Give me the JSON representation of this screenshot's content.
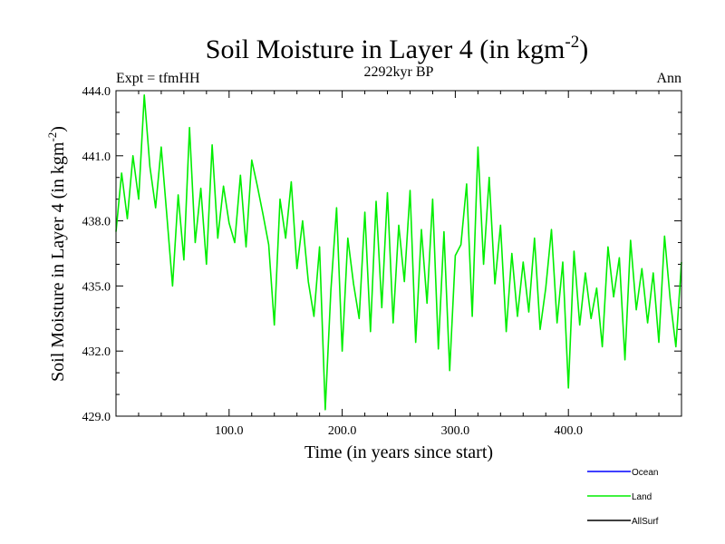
{
  "chart_data": {
    "type": "line",
    "title": "Soil Moisture in Layer 4 (in kgm",
    "title_sup": "-2",
    "title_close": ")",
    "subtitle": "2292kyr BP",
    "left_label": "Expt = tfmHH",
    "right_label": "Ann",
    "xlabel": "Time (in years since start)",
    "ylabel": "Soil Moisture in Layer 4 (in kgm",
    "ylabel_sup": "-2",
    "ylabel_close": ")",
    "xlim": [
      0,
      500
    ],
    "ylim": [
      429,
      444
    ],
    "x_ticks": [
      100,
      200,
      300,
      400
    ],
    "x_tick_labels": [
      "100.0",
      "200.0",
      "300.0",
      "400.0"
    ],
    "y_ticks": [
      429,
      432,
      435,
      438,
      441,
      444
    ],
    "y_tick_labels": [
      "429.0",
      "432.0",
      "435.0",
      "438.0",
      "441.0",
      "444.0"
    ],
    "series": [
      {
        "name": "Land",
        "color": "#00ee00",
        "x": [
          0,
          5,
          10,
          15,
          20,
          25,
          30,
          35,
          40,
          45,
          50,
          55,
          60,
          65,
          70,
          75,
          80,
          85,
          90,
          95,
          100,
          105,
          110,
          115,
          120,
          125,
          130,
          135,
          140,
          145,
          150,
          155,
          160,
          165,
          170,
          175,
          180,
          185,
          190,
          195,
          200,
          205,
          210,
          215,
          220,
          225,
          230,
          235,
          240,
          245,
          250,
          255,
          260,
          265,
          270,
          275,
          280,
          285,
          290,
          295,
          300,
          305,
          310,
          315,
          320,
          325,
          330,
          335,
          340,
          345,
          350,
          355,
          360,
          365,
          370,
          375,
          380,
          385,
          390,
          395,
          400,
          405,
          410,
          415,
          420,
          425,
          430,
          435,
          440,
          445,
          450,
          455,
          460,
          465,
          470,
          475,
          480,
          485,
          490,
          495,
          500
        ],
        "values": [
          437.5,
          440.2,
          438.1,
          441.0,
          439.0,
          443.8,
          440.5,
          438.6,
          441.4,
          438.2,
          435.0,
          439.2,
          436.2,
          442.3,
          437.0,
          439.5,
          436.0,
          441.5,
          437.2,
          439.6,
          437.9,
          437.0,
          440.1,
          436.8,
          440.8,
          439.6,
          438.3,
          436.9,
          433.2,
          439.0,
          437.2,
          439.8,
          435.8,
          438.0,
          435.2,
          433.6,
          436.8,
          429.3,
          434.8,
          438.6,
          432.0,
          437.2,
          435.1,
          433.5,
          438.4,
          432.9,
          438.9,
          434.0,
          439.3,
          433.3,
          437.8,
          435.2,
          439.4,
          432.4,
          437.6,
          434.2,
          439.0,
          432.1,
          437.5,
          431.1,
          436.4,
          436.9,
          439.7,
          433.6,
          441.4,
          436.0,
          440.0,
          435.1,
          437.8,
          432.9,
          436.5,
          433.6,
          436.1,
          433.8,
          437.2,
          433.0,
          434.9,
          437.6,
          433.3,
          436.1,
          430.3,
          436.6,
          433.2,
          435.6,
          433.5,
          434.9,
          432.2,
          436.8,
          434.5,
          436.3,
          431.6,
          437.1,
          433.9,
          435.8,
          433.3,
          435.6,
          432.4,
          437.3,
          434.4,
          432.2,
          436.1
        ]
      }
    ],
    "legend": [
      {
        "label": "Ocean",
        "color": "#0000ff"
      },
      {
        "label": "Land",
        "color": "#00ee00"
      },
      {
        "label": "AllSurf",
        "color": "#000000"
      }
    ]
  }
}
